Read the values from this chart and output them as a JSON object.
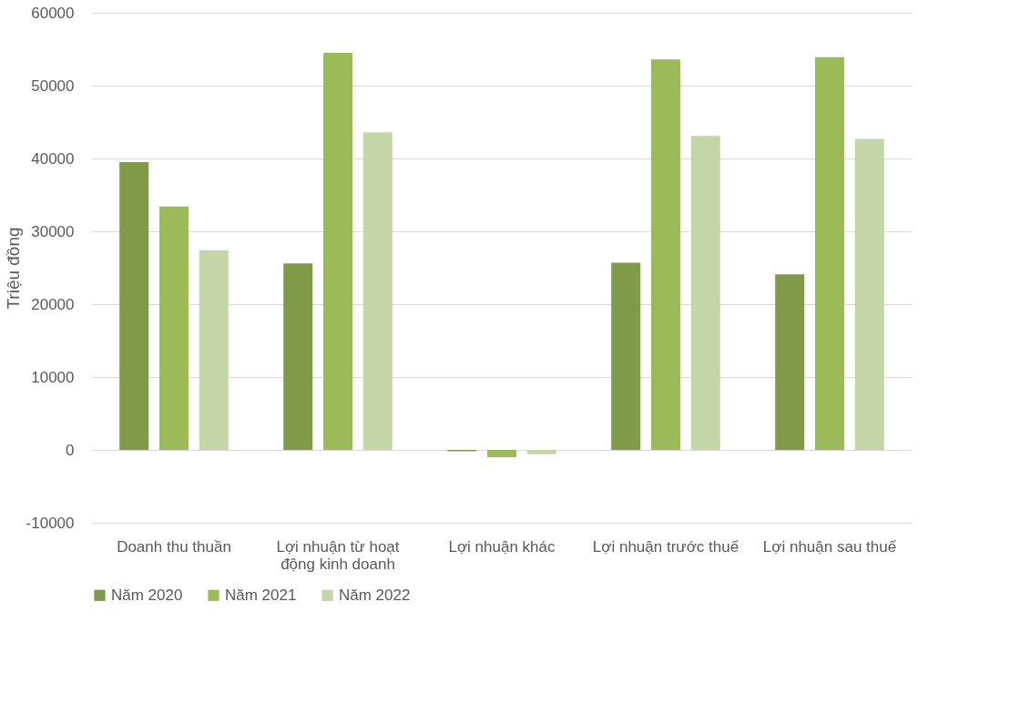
{
  "chart_data": {
    "type": "bar",
    "ylabel": "Triệu đồng",
    "categories": [
      "Doanh thu thuần",
      "Lợi nhuận từ hoạt động kinh doanh",
      "Lợi nhuận khác",
      "Lợi nhuận trước thuế",
      "Lợi nhuận sau thuế"
    ],
    "series": [
      {
        "name": "Năm 2020",
        "color": "#7f9a48",
        "values": [
          39500,
          25600,
          -200,
          25700,
          24100
        ]
      },
      {
        "name": "Năm 2021",
        "color": "#9bbb59",
        "values": [
          33400,
          54500,
          -1000,
          53600,
          53900
        ]
      },
      {
        "name": "Năm 2022",
        "color": "#c4d6a8",
        "values": [
          27400,
          43600,
          -600,
          43100,
          42700
        ]
      }
    ],
    "ylim": [
      -10000,
      60000
    ],
    "yticks": [
      -10000,
      0,
      10000,
      20000,
      30000,
      40000,
      50000,
      60000
    ],
    "grid": "y",
    "legend": "bottom"
  }
}
